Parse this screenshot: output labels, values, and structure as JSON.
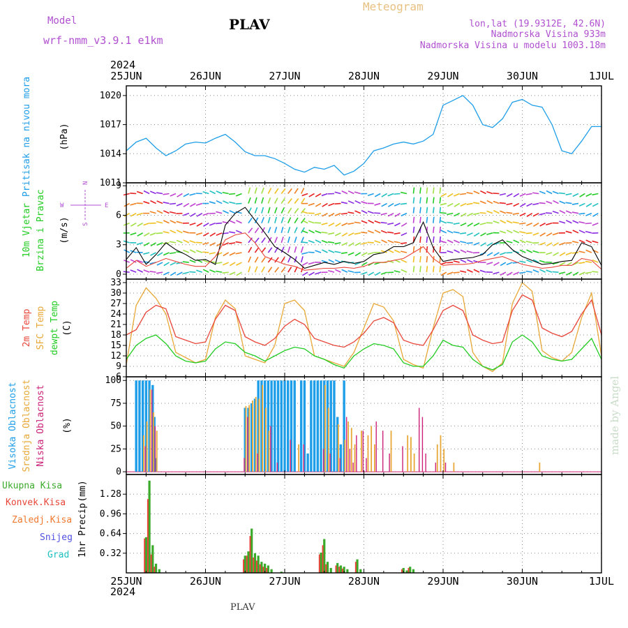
{
  "header": {
    "model_label": "Model",
    "model_name": "wrf-nmm_v3.9.1 e1km",
    "station": "PLAV",
    "chart_kind": "Meteogram",
    "lonlat": "lon,lat (19.9312E, 42.6N)",
    "elevation": "Nadmorska Visina 933m",
    "elevation_model": "Nadmorska Visina u modelu 1003.18m",
    "year_top": "2024",
    "year_bottom": "2024",
    "footer_station": "PLAV",
    "credit": "made by Angel"
  },
  "colors": {
    "pressure": "#1e9ee8",
    "temp2m": "#e8463a",
    "sfc": "#e8a838",
    "dew": "#22cc22",
    "high_cloud": "#1e9ee8",
    "mid_cloud": "#e8a838",
    "low_cloud": "#cc2277",
    "total_precip": "#3aaa2a",
    "conv_precip": "#e8463a",
    "frozen_precip": "#f07830",
    "snow": "#5050e0",
    "hail": "#20c0c0",
    "purple_text": "#b050d0",
    "gold_text": "#e8c080",
    "credit": "#c8dcc8"
  },
  "chart_data": [
    {
      "type": "line",
      "id": "pressure",
      "xlabels": [
        "25JUN",
        "26JUN",
        "27JUN",
        "28JUN",
        "29JUN",
        "30JUN",
        "1JUL"
      ],
      "ylabel": "Pritisak na nivou mora",
      "unit": "(hPa)",
      "yticks": [
        1011,
        1014,
        1017,
        1020
      ],
      "ylim": [
        1011,
        1021
      ],
      "x_hours": [
        0,
        3,
        6,
        9,
        12,
        15,
        18,
        21,
        24,
        27,
        30,
        33,
        36,
        39,
        42,
        45,
        48,
        51,
        54,
        57,
        60,
        63,
        66,
        69,
        72,
        75,
        78,
        81,
        84,
        87,
        90,
        93,
        96,
        99,
        102,
        105,
        108,
        111,
        114,
        117,
        120,
        123,
        126,
        129,
        132,
        135,
        138,
        141,
        144
      ],
      "values": [
        1014.3,
        1015.2,
        1015.6,
        1014.6,
        1013.8,
        1014.3,
        1015.0,
        1015.2,
        1015.1,
        1015.6,
        1016.0,
        1015.2,
        1014.2,
        1013.8,
        1013.8,
        1013.5,
        1013.0,
        1012.4,
        1012.1,
        1012.6,
        1012.4,
        1012.8,
        1011.8,
        1012.2,
        1013.0,
        1014.3,
        1014.6,
        1015.0,
        1015.2,
        1015.0,
        1015.3,
        1016.0,
        1019.0,
        1019.5,
        1020.0,
        1019.0,
        1017.0,
        1016.7,
        1017.6,
        1019.3,
        1019.6,
        1019.0,
        1018.8,
        1017.0,
        1014.3,
        1014.0,
        1015.3,
        1016.8,
        1016.8
      ],
      "grid": true
    },
    {
      "type": "line",
      "id": "wind",
      "ylabel_1": "10m Vjetar",
      "ylabel_2": "Brzina i Pravac",
      "unit": "(m/s)",
      "compass_n": "N",
      "compass_s": "S",
      "compass_w": "W",
      "compass_e": "E",
      "yticks": [
        0,
        3,
        6,
        9
      ],
      "ylim": [
        -0.5,
        9.3
      ],
      "x_hours": [
        0,
        3,
        6,
        9,
        12,
        15,
        18,
        21,
        24,
        27,
        30,
        33,
        36,
        39,
        42,
        45,
        48,
        51,
        54,
        57,
        60,
        63,
        66,
        69,
        72,
        75,
        78,
        81,
        84,
        87,
        90,
        93,
        96,
        99,
        102,
        105,
        108,
        111,
        114,
        117,
        120,
        123,
        126,
        129,
        132,
        135,
        138,
        141,
        144
      ],
      "speed": [
        1.5,
        2.7,
        1.0,
        2.0,
        3.2,
        2.5,
        2.0,
        1.4,
        1.5,
        1.0,
        5.0,
        6.2,
        6.8,
        5.5,
        4.2,
        2.8,
        2.2,
        1.5,
        0.6,
        0.9,
        1.2,
        1.0,
        1.3,
        1.1,
        1.3,
        2.0,
        2.2,
        2.8,
        2.8,
        3.2,
        5.3,
        2.7,
        1.3,
        1.5,
        1.6,
        1.7,
        2.0,
        3.0,
        3.5,
        2.5,
        1.8,
        1.4,
        1.0,
        1.1,
        1.3,
        1.4,
        3.2,
        2.8,
        0.9
      ],
      "gust": [
        0.6,
        1.4,
        0.8,
        1.2,
        1.6,
        1.3,
        1.0,
        0.8,
        0.8,
        1.8,
        3.5,
        4.0,
        4.2,
        3.2,
        1.8,
        1.4,
        1.0,
        0.8,
        0.4,
        0.5,
        0.6,
        0.6,
        0.7,
        0.6,
        0.8,
        1.2,
        1.2,
        1.4,
        1.6,
        2.2,
        2.8,
        1.6,
        0.9,
        1.0,
        1.0,
        1.1,
        1.4,
        1.6,
        1.8,
        1.4,
        1.0,
        0.8,
        0.6,
        0.7,
        0.9,
        0.9,
        1.6,
        1.4,
        0.5
      ],
      "grid": true
    },
    {
      "type": "line",
      "id": "temperature",
      "ylabel_1": "2m Temp",
      "ylabel_2": "SFC Temp",
      "ylabel_3": "dewpt Temp",
      "unit": "(C)",
      "yticks": [
        6,
        9,
        12,
        15,
        18,
        21,
        24,
        27,
        30,
        33
      ],
      "ylim": [
        6,
        34
      ],
      "x_hours": [
        0,
        3,
        6,
        9,
        12,
        15,
        18,
        21,
        24,
        27,
        30,
        33,
        36,
        39,
        42,
        45,
        48,
        51,
        54,
        57,
        60,
        63,
        66,
        69,
        72,
        75,
        78,
        81,
        84,
        87,
        90,
        93,
        96,
        99,
        102,
        105,
        108,
        111,
        114,
        117,
        120,
        123,
        126,
        129,
        132,
        135,
        138,
        141,
        144
      ],
      "t2m": [
        18.0,
        19.5,
        24.5,
        26.5,
        25.5,
        17.5,
        16.5,
        15.5,
        16.0,
        22.5,
        26.5,
        25.0,
        17.5,
        16.0,
        15.0,
        17.0,
        20.5,
        22.5,
        21.0,
        17.0,
        16.0,
        15.0,
        14.5,
        16.0,
        18.5,
        22.0,
        23.0,
        21.5,
        16.5,
        15.5,
        15.0,
        19.5,
        25.0,
        26.5,
        25.0,
        18.0,
        16.5,
        15.5,
        16.0,
        25.0,
        29.5,
        28.0,
        20.0,
        18.5,
        17.5,
        19.0,
        24.0,
        28.0,
        18.0
      ],
      "sfc": [
        9.5,
        26.5,
        31.5,
        28.5,
        24.0,
        13.0,
        11.5,
        10.0,
        11.0,
        23.0,
        28.0,
        25.5,
        12.0,
        11.0,
        10.0,
        15.0,
        27.0,
        28.0,
        25.0,
        12.0,
        11.0,
        10.0,
        9.0,
        13.0,
        20.0,
        27.0,
        26.0,
        22.0,
        11.0,
        9.5,
        8.5,
        20.0,
        30.0,
        31.0,
        29.0,
        13.0,
        9.0,
        7.5,
        10.0,
        27.0,
        33.0,
        30.5,
        13.5,
        11.5,
        10.5,
        13.0,
        23.0,
        30.0,
        12.0
      ],
      "dew": [
        11.0,
        15.0,
        17.0,
        18.0,
        15.5,
        12.0,
        10.5,
        10.0,
        10.5,
        14.0,
        16.0,
        15.5,
        13.0,
        12.0,
        10.5,
        12.0,
        13.5,
        14.5,
        14.0,
        12.0,
        11.0,
        9.5,
        8.5,
        12.0,
        14.0,
        15.5,
        15.0,
        14.0,
        10.0,
        9.0,
        9.0,
        12.0,
        16.5,
        15.0,
        14.5,
        11.0,
        9.0,
        8.0,
        9.5,
        16.0,
        18.0,
        16.0,
        12.0,
        11.0,
        10.5,
        11.0,
        14.0,
        17.0,
        11.0
      ],
      "grid": true
    },
    {
      "type": "bar",
      "id": "clouds",
      "ylabel_1": "Visoka Oblacnost",
      "ylabel_2": "Srednja Oblacnost",
      "ylabel_3": "Niska Oblacnost",
      "unit": "(%)",
      "yticks": [
        0,
        25,
        50,
        75,
        100
      ],
      "ylim": [
        -3,
        104
      ],
      "high": [
        [
          3,
          100
        ],
        [
          4,
          100
        ],
        [
          5,
          100
        ],
        [
          6,
          100
        ],
        [
          7,
          100
        ],
        [
          8,
          95
        ],
        [
          8.5,
          60
        ],
        [
          9,
          15
        ],
        [
          36,
          70
        ],
        [
          37,
          70
        ],
        [
          38,
          75
        ],
        [
          39,
          80
        ],
        [
          40,
          100
        ],
        [
          41,
          100
        ],
        [
          42,
          100
        ],
        [
          43,
          100
        ],
        [
          44,
          100
        ],
        [
          45,
          100
        ],
        [
          46,
          100
        ],
        [
          47,
          100
        ],
        [
          48,
          100
        ],
        [
          49,
          100
        ],
        [
          50,
          100
        ],
        [
          51,
          100
        ],
        [
          53,
          100
        ],
        [
          54,
          100
        ],
        [
          55,
          20
        ],
        [
          56,
          100
        ],
        [
          57,
          100
        ],
        [
          58,
          100
        ],
        [
          59,
          100
        ],
        [
          60,
          100
        ],
        [
          61,
          100
        ],
        [
          62,
          100
        ],
        [
          63,
          100
        ],
        [
          64,
          60
        ],
        [
          65,
          30
        ],
        [
          66,
          100
        ]
      ],
      "mid": [
        [
          5,
          40
        ],
        [
          6,
          55
        ],
        [
          7,
          90
        ],
        [
          8,
          65
        ],
        [
          9,
          45
        ],
        [
          36,
          72
        ],
        [
          37,
          73
        ],
        [
          38,
          78
        ],
        [
          39,
          82
        ],
        [
          40,
          80
        ],
        [
          41,
          95
        ],
        [
          42,
          70
        ],
        [
          43,
          45
        ],
        [
          52,
          30
        ],
        [
          60,
          95
        ],
        [
          61,
          70
        ],
        [
          64,
          52
        ],
        [
          66,
          35
        ],
        [
          67,
          55
        ],
        [
          68,
          48
        ],
        [
          69,
          30
        ],
        [
          71,
          45
        ],
        [
          73,
          40
        ],
        [
          74,
          50
        ],
        [
          75,
          30
        ],
        [
          80,
          45
        ],
        [
          85,
          40
        ],
        [
          86,
          38
        ],
        [
          87,
          20
        ],
        [
          94,
          30
        ],
        [
          95,
          40
        ],
        [
          96,
          25
        ],
        [
          99,
          10
        ],
        [
          125,
          10
        ]
      ],
      "low": [
        [
          6,
          28
        ],
        [
          8,
          90
        ],
        [
          9,
          50
        ],
        [
          36,
          15
        ],
        [
          37,
          60
        ],
        [
          40,
          20
        ],
        [
          44,
          50
        ],
        [
          46,
          10
        ],
        [
          50,
          35
        ],
        [
          54,
          30
        ],
        [
          60,
          25
        ],
        [
          62,
          20
        ],
        [
          65,
          15
        ],
        [
          67,
          60
        ],
        [
          68,
          25
        ],
        [
          69,
          10
        ],
        [
          70,
          40
        ],
        [
          72,
          45
        ],
        [
          73,
          15
        ],
        [
          76,
          55
        ],
        [
          78,
          45
        ],
        [
          80,
          20
        ],
        [
          84,
          28
        ],
        [
          89,
          70
        ],
        [
          90,
          60
        ],
        [
          91,
          20
        ],
        [
          94,
          10
        ],
        [
          97,
          10
        ]
      ],
      "grid": true
    },
    {
      "type": "bar",
      "id": "precip",
      "ylabel": "1hr Precip",
      "unit": "(mm)",
      "legend": [
        "Ukupna Kisa",
        "Konvek.Kisa",
        "Zaledj.Kisa",
        "Snijeg",
        "Grad"
      ],
      "yticks": [
        0.32,
        0.64,
        0.96,
        1.28
      ],
      "ylim": [
        0,
        1.6
      ],
      "xlabels": [
        "25JUN",
        "26JUN",
        "27JUN",
        "28JUN",
        "29JUN",
        "30JUN",
        "1JUL"
      ],
      "total": [
        [
          6,
          0.58
        ],
        [
          7,
          1.5
        ],
        [
          8,
          0.45
        ],
        [
          9,
          0.15
        ],
        [
          10,
          0.06
        ],
        [
          36,
          0.28
        ],
        [
          37,
          0.35
        ],
        [
          38,
          0.72
        ],
        [
          39,
          0.32
        ],
        [
          40,
          0.28
        ],
        [
          41,
          0.18
        ],
        [
          42,
          0.15
        ],
        [
          43,
          0.12
        ],
        [
          44,
          0.06
        ],
        [
          47,
          0.02
        ],
        [
          59,
          0.33
        ],
        [
          60,
          0.55
        ],
        [
          61,
          0.18
        ],
        [
          62,
          0.08
        ],
        [
          64,
          0.16
        ],
        [
          65,
          0.12
        ],
        [
          66,
          0.1
        ],
        [
          67,
          0.06
        ],
        [
          70,
          0.22
        ],
        [
          71,
          0.06
        ],
        [
          84,
          0.08
        ],
        [
          85,
          0.04
        ],
        [
          86,
          0.1
        ],
        [
          87,
          0.06
        ]
      ],
      "conv": [
        [
          6,
          0.56
        ],
        [
          7,
          1.2
        ],
        [
          8,
          0.3
        ],
        [
          9,
          0.1
        ],
        [
          36,
          0.22
        ],
        [
          37,
          0.28
        ],
        [
          38,
          0.6
        ],
        [
          39,
          0.25
        ],
        [
          40,
          0.2
        ],
        [
          41,
          0.14
        ],
        [
          42,
          0.1
        ],
        [
          43,
          0.08
        ],
        [
          59,
          0.3
        ],
        [
          60,
          0.45
        ],
        [
          61,
          0.14
        ],
        [
          64,
          0.12
        ],
        [
          65,
          0.1
        ],
        [
          66,
          0.07
        ],
        [
          70,
          0.18
        ],
        [
          84,
          0.06
        ],
        [
          86,
          0.08
        ]
      ],
      "grid": true
    }
  ]
}
